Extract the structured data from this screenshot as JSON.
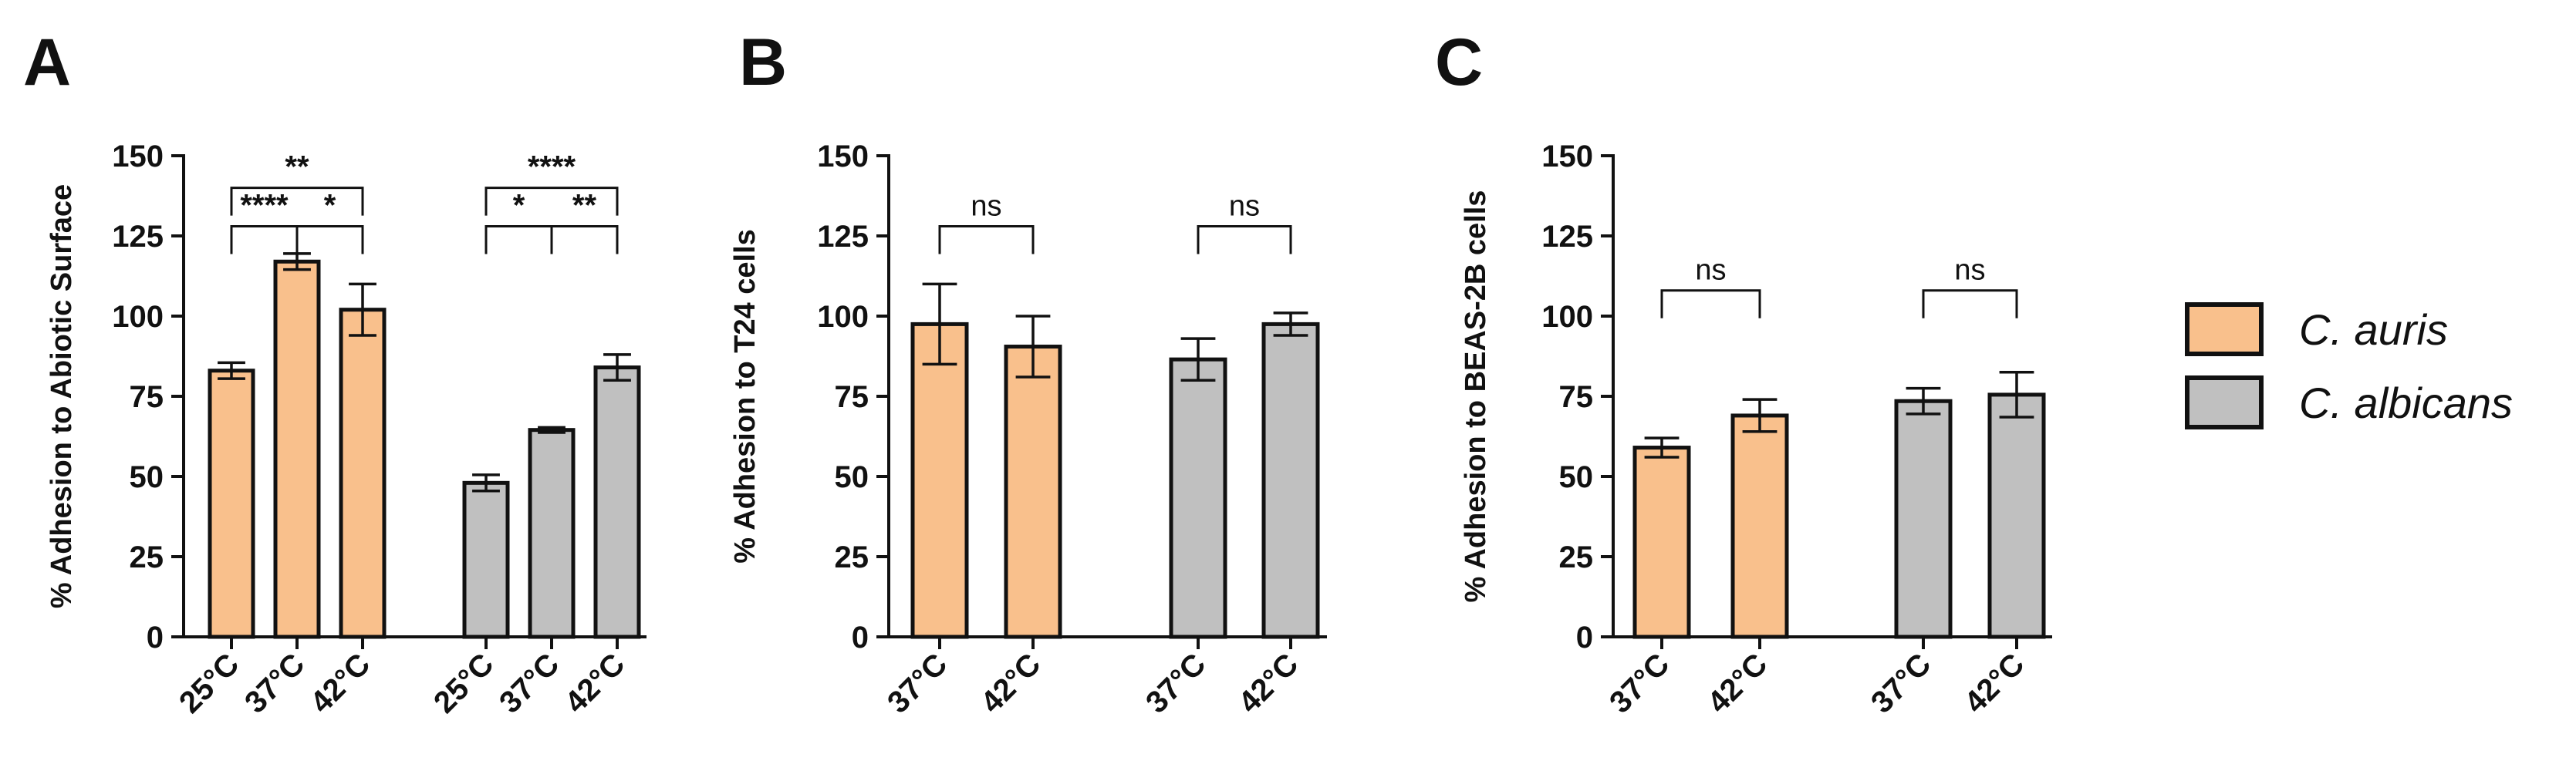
{
  "colors": {
    "c_auris": "#f9c08c",
    "c_albicans": "#c0c0c0",
    "stroke": "#111111"
  },
  "legend": [
    {
      "label": "C. auris",
      "color_key": "c_auris"
    },
    {
      "label": "C. albicans",
      "color_key": "c_albicans"
    }
  ],
  "chart_data": [
    {
      "panel": "A",
      "type": "bar",
      "ylabel": "% Adhesion to Abiotic Surface",
      "ylim": [
        0,
        150
      ],
      "yticks": [
        0,
        25,
        50,
        75,
        100,
        125,
        150
      ],
      "categories": [
        "25°C",
        "37°C",
        "42°C",
        "25°C",
        "37°C",
        "42°C"
      ],
      "groups": [
        "c_auris",
        "c_auris",
        "c_auris",
        "c_albicans",
        "c_albicans",
        "c_albicans"
      ],
      "values": [
        83,
        117,
        102,
        48,
        64.5,
        84
      ],
      "errors": [
        2.5,
        2.5,
        8,
        2.5,
        0.8,
        4
      ],
      "annotations": [
        {
          "from": 0,
          "to": 2,
          "y": 140,
          "label": "**"
        },
        {
          "from": 0,
          "to": 1,
          "y": 128,
          "label": "****"
        },
        {
          "from": 1,
          "to": 2,
          "y": 128,
          "label": "*"
        },
        {
          "from": 3,
          "to": 5,
          "y": 140,
          "label": "****"
        },
        {
          "from": 3,
          "to": 4,
          "y": 128,
          "label": "*"
        },
        {
          "from": 4,
          "to": 5,
          "y": 128,
          "label": "**"
        }
      ]
    },
    {
      "panel": "B",
      "type": "bar",
      "ylabel": "% Adhesion to T24 cells",
      "ylim": [
        0,
        150
      ],
      "yticks": [
        0,
        25,
        50,
        75,
        100,
        125,
        150
      ],
      "categories": [
        "37°C",
        "42°C",
        "37°C",
        "42°C"
      ],
      "groups": [
        "c_auris",
        "c_auris",
        "c_albicans",
        "c_albicans"
      ],
      "values": [
        97.5,
        90.5,
        86.5,
        97.5
      ],
      "errors": [
        12.5,
        9.5,
        6.5,
        3.5
      ],
      "annotations": [
        {
          "from": 0,
          "to": 1,
          "y": 128,
          "label": "ns"
        },
        {
          "from": 2,
          "to": 3,
          "y": 128,
          "label": "ns"
        }
      ]
    },
    {
      "panel": "C",
      "type": "bar",
      "ylabel": "% Adhesion to BEAS-2B cells",
      "ylim": [
        0,
        150
      ],
      "yticks": [
        0,
        25,
        50,
        75,
        100,
        125,
        150
      ],
      "categories": [
        "37°C",
        "42°C",
        "37°C",
        "42°C"
      ],
      "groups": [
        "c_auris",
        "c_auris",
        "c_albicans",
        "c_albicans"
      ],
      "values": [
        59,
        69,
        73.5,
        75.5
      ],
      "errors": [
        3,
        5,
        4,
        7
      ],
      "annotations": [
        {
          "from": 0,
          "to": 1,
          "y": 108,
          "label": "ns"
        },
        {
          "from": 2,
          "to": 3,
          "y": 108,
          "label": "ns"
        }
      ]
    }
  ]
}
